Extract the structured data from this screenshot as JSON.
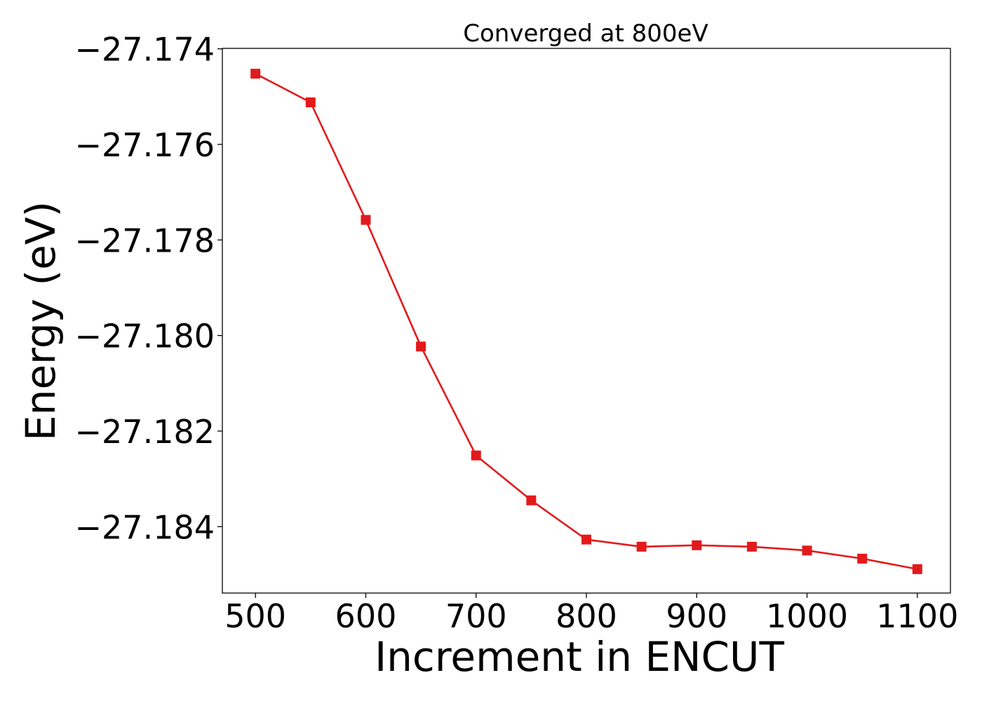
{
  "chart_data": {
    "type": "line",
    "title": "Converged at 800eV",
    "xlabel": "Increment in ENCUT",
    "ylabel": "Energy (eV)",
    "x_ticks": [
      500,
      600,
      700,
      800,
      900,
      1000,
      1100
    ],
    "y_ticks": [
      -27.174,
      -27.176,
      -27.178,
      -27.18,
      -27.182,
      -27.184
    ],
    "x_tick_labels": [
      "500",
      "600",
      "700",
      "800",
      "900",
      "1000",
      "1100"
    ],
    "y_tick_labels": [
      "−27.174",
      "−27.176",
      "−27.178",
      "−27.180",
      "−27.182",
      "−27.184"
    ],
    "xlim": [
      470,
      1130
    ],
    "ylim": [
      -27.18539,
      -27.17399
    ],
    "grid": false,
    "series": [
      {
        "color": "#e31a1c",
        "marker": "square",
        "x": [
          500,
          550,
          600,
          650,
          700,
          750,
          800,
          850,
          900,
          950,
          1000,
          1050,
          1100
        ],
        "y": [
          -27.17452,
          -27.17512,
          -27.17758,
          -27.18023,
          -27.18251,
          -27.18345,
          -27.18427,
          -27.18442,
          -27.18439,
          -27.18442,
          -27.1845,
          -27.18467,
          -27.18489
        ]
      }
    ]
  }
}
